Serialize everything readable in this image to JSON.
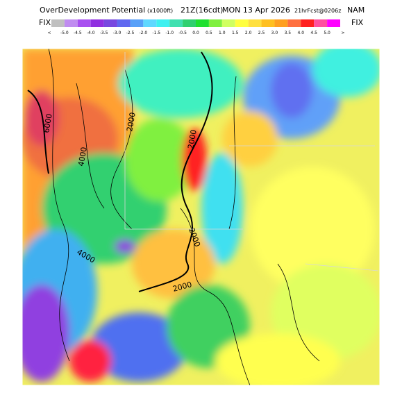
{
  "header": {
    "title": "OverDevelopment Potential",
    "units": "(x1000ft)",
    "time": "21Z(16cdt)",
    "date": "MON 13 Apr 2026",
    "forecast": "21hrFcst@0206z",
    "model": "NAM"
  },
  "legend": {
    "left_tag": "FIX",
    "right_tag": "FIX",
    "labels": [
      "<",
      "-5.0",
      "-4.5",
      "-4.0",
      "-3.5",
      "-3.0",
      "-2.5",
      "-2.0",
      "-1.5",
      "-1.0",
      "-0.5",
      "0.0",
      "0.5",
      "1.0",
      "1.5",
      "2.0",
      "2.5",
      "3.0",
      "3.5",
      "4.0",
      "4.5",
      "5.0",
      ">"
    ],
    "colors": [
      "#c0c0c0",
      "#c08cf0",
      "#a850f0",
      "#9030e0",
      "#7848e0",
      "#6068f0",
      "#58a0f8",
      "#60d8ff",
      "#40f0f0",
      "#40e0b0",
      "#30d070",
      "#20e030",
      "#80f040",
      "#d0ff60",
      "#ffff40",
      "#ffe040",
      "#ffc020",
      "#ffa020",
      "#ff7040",
      "#ff2020",
      "#ff50a0",
      "#ff00ff"
    ]
  },
  "contours": [
    "6000",
    "4000",
    "4000",
    "2000",
    "2000",
    "2000",
    "2000"
  ]
}
